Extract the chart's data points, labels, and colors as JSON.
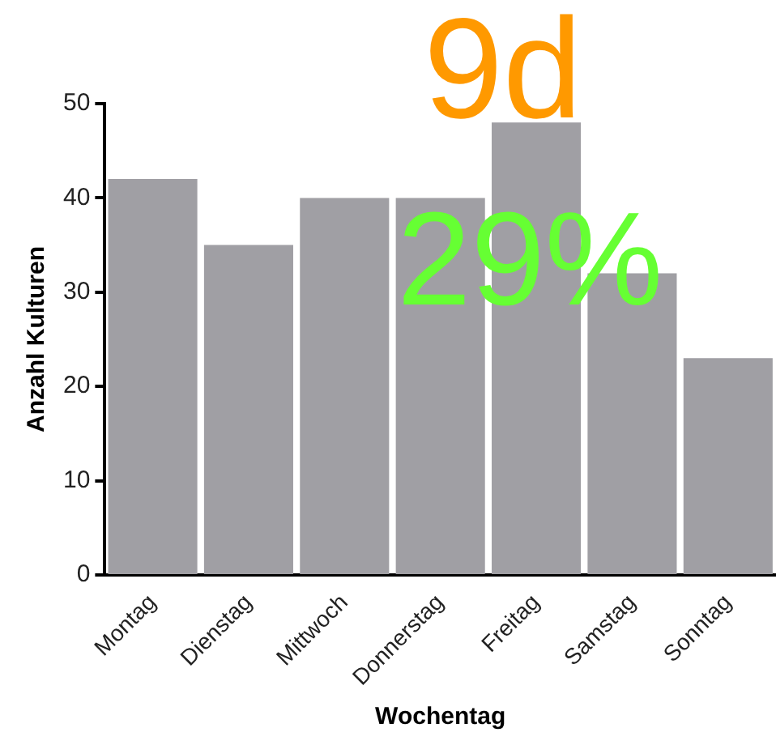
{
  "chart_data": {
    "type": "bar",
    "xlabel": "Wochentag",
    "ylabel": "Anzahl Kulturen",
    "categories": [
      "Montag",
      "Dienstag",
      "Mittwoch",
      "Donnerstag",
      "Freitag",
      "Samstag",
      "Sonntag"
    ],
    "values": [
      42,
      35,
      40,
      40,
      48,
      32,
      23
    ],
    "color": "#a09fa4",
    "ylim": [
      0,
      50
    ],
    "yticks": [
      0,
      10,
      20,
      30,
      40,
      50
    ],
    "grid": false,
    "legend": false,
    "annotations": [
      "9d",
      "29%"
    ]
  }
}
